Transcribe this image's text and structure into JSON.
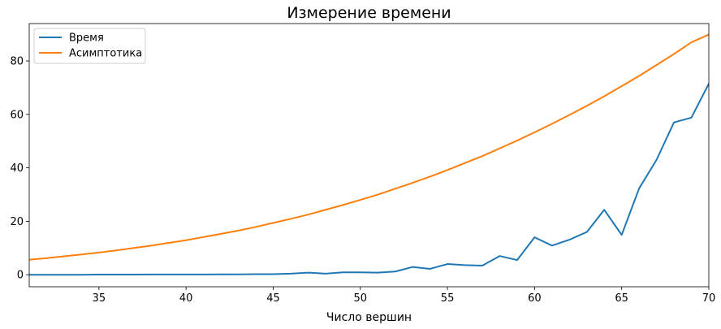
{
  "chart_data": {
    "type": "line",
    "title": "Измерение времени",
    "xlabel": "Число вершин",
    "ylabel": "",
    "xlim": [
      31,
      70
    ],
    "ylim": [
      -4.5,
      94
    ],
    "xticks": [
      35,
      40,
      45,
      50,
      55,
      60,
      65,
      70
    ],
    "yticks": [
      0,
      20,
      40,
      60,
      80
    ],
    "grid": false,
    "legend_position": "top-left",
    "series": [
      {
        "name": "Время",
        "color": "#1f77b4",
        "x": [
          31,
          32,
          33,
          34,
          35,
          36,
          37,
          38,
          39,
          40,
          41,
          42,
          43,
          44,
          45,
          46,
          47,
          48,
          49,
          50,
          51,
          52,
          53,
          54,
          55,
          56,
          57,
          58,
          59,
          60,
          61,
          62,
          63,
          64,
          65,
          66,
          67,
          68,
          69,
          70
        ],
        "y": [
          0.0,
          0.0,
          0.0,
          0.0,
          0.05,
          0.05,
          0.05,
          0.1,
          0.1,
          0.1,
          0.1,
          0.15,
          0.15,
          0.2,
          0.2,
          0.4,
          0.8,
          0.4,
          0.9,
          0.9,
          0.8,
          1.2,
          2.9,
          2.2,
          4.0,
          3.6,
          3.4,
          7.0,
          5.5,
          14.0,
          10.9,
          13.1,
          16.0,
          24.3,
          14.9,
          32.3,
          43.0,
          57.0,
          58.8,
          71.5
        ]
      },
      {
        "name": "Асимптотика",
        "color": "#ff7f0e",
        "x": [
          31,
          32,
          33,
          34,
          35,
          36,
          37,
          38,
          39,
          40,
          41,
          42,
          43,
          44,
          45,
          46,
          47,
          48,
          49,
          50,
          51,
          52,
          53,
          54,
          55,
          56,
          57,
          58,
          59,
          60,
          61,
          62,
          63,
          64,
          65,
          66,
          67,
          68,
          69,
          70
        ],
        "y": [
          5.6,
          6.2,
          6.9,
          7.6,
          8.3,
          9.1,
          10.0,
          10.9,
          11.9,
          12.9,
          14.1,
          15.3,
          16.5,
          17.9,
          19.4,
          20.9,
          22.5,
          24.3,
          26.1,
          28.0,
          30.0,
          32.2,
          34.4,
          36.7,
          39.2,
          41.8,
          44.4,
          47.3,
          50.2,
          53.3,
          56.5,
          59.8,
          63.2,
          66.8,
          70.6,
          74.4,
          78.5,
          82.6,
          87.0,
          89.9
        ]
      }
    ]
  }
}
